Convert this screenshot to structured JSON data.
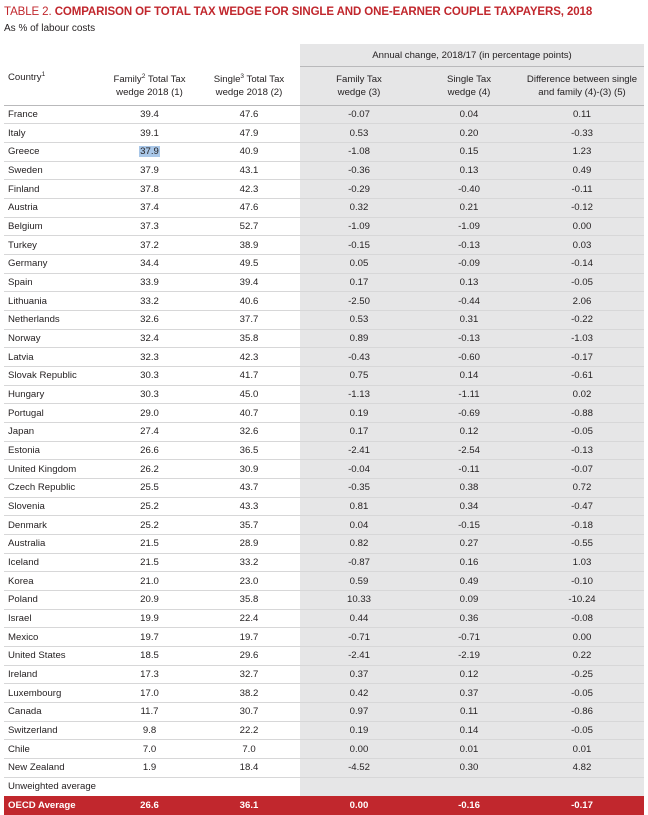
{
  "title": {
    "prefix": "TABLE 2.",
    "text": "COMPARISON OF TOTAL TAX WEDGE FOR SINGLE AND ONE-EARNER COUPLE TAXPAYERS, 2018",
    "subtitle": "As % of labour costs"
  },
  "headers": {
    "annual": "Annual change, 2018/17 (in percentage points)",
    "country": "Country",
    "country_sup": "1",
    "family_a": "Family",
    "family_sup": "2",
    "family_b": " Total Tax",
    "family_c": "wedge 2018 (1)",
    "single_a": "Single",
    "single_sup": "3",
    "single_b": " Total Tax",
    "single_c": "wedge 2018 (2)",
    "family_change_a": "Family Tax",
    "family_change_b": "wedge (3)",
    "single_change_a": "Single Tax",
    "single_change_b": "wedge (4)",
    "diff_a": "Difference between single",
    "diff_b": "and family (4)-(3) (5)"
  },
  "rows": [
    {
      "country": "France",
      "family": "39.4",
      "single": "47.6",
      "d_family": "-0.07",
      "d_single": "0.04",
      "diff": "0.11"
    },
    {
      "country": "Italy",
      "family": "39.1",
      "single": "47.9",
      "d_family": "0.53",
      "d_single": "0.20",
      "diff": "-0.33"
    },
    {
      "country": "Greece",
      "family": "37.9",
      "single": "40.9",
      "d_family": "-1.08",
      "d_single": "0.15",
      "diff": "1.23"
    },
    {
      "country": "Sweden",
      "family": "37.9",
      "single": "43.1",
      "d_family": "-0.36",
      "d_single": "0.13",
      "diff": "0.49"
    },
    {
      "country": "Finland",
      "family": "37.8",
      "single": "42.3",
      "d_family": "-0.29",
      "d_single": "-0.40",
      "diff": "-0.11"
    },
    {
      "country": "Austria",
      "family": "37.4",
      "single": "47.6",
      "d_family": "0.32",
      "d_single": "0.21",
      "diff": "-0.12"
    },
    {
      "country": "Belgium",
      "family": "37.3",
      "single": "52.7",
      "d_family": "-1.09",
      "d_single": "-1.09",
      "diff": "0.00"
    },
    {
      "country": "Turkey",
      "family": "37.2",
      "single": "38.9",
      "d_family": "-0.15",
      "d_single": "-0.13",
      "diff": "0.03"
    },
    {
      "country": "Germany",
      "family": "34.4",
      "single": "49.5",
      "d_family": "0.05",
      "d_single": "-0.09",
      "diff": "-0.14"
    },
    {
      "country": "Spain",
      "family": "33.9",
      "single": "39.4",
      "d_family": "0.17",
      "d_single": "0.13",
      "diff": "-0.05"
    },
    {
      "country": "Lithuania",
      "family": "33.2",
      "single": "40.6",
      "d_family": "-2.50",
      "d_single": "-0.44",
      "diff": "2.06"
    },
    {
      "country": "Netherlands",
      "family": "32.6",
      "single": "37.7",
      "d_family": "0.53",
      "d_single": "0.31",
      "diff": "-0.22"
    },
    {
      "country": "Norway",
      "family": "32.4",
      "single": "35.8",
      "d_family": "0.89",
      "d_single": "-0.13",
      "diff": "-1.03"
    },
    {
      "country": "Latvia",
      "family": "32.3",
      "single": "42.3",
      "d_family": "-0.43",
      "d_single": "-0.60",
      "diff": "-0.17"
    },
    {
      "country": "Slovak Republic",
      "family": "30.3",
      "single": "41.7",
      "d_family": "0.75",
      "d_single": "0.14",
      "diff": "-0.61"
    },
    {
      "country": "Hungary",
      "family": "30.3",
      "single": "45.0",
      "d_family": "-1.13",
      "d_single": "-1.11",
      "diff": "0.02"
    },
    {
      "country": "Portugal",
      "family": "29.0",
      "single": "40.7",
      "d_family": "0.19",
      "d_single": "-0.69",
      "diff": "-0.88"
    },
    {
      "country": "Japan",
      "family": "27.4",
      "single": "32.6",
      "d_family": "0.17",
      "d_single": "0.12",
      "diff": "-0.05"
    },
    {
      "country": "Estonia",
      "family": "26.6",
      "single": "36.5",
      "d_family": "-2.41",
      "d_single": "-2.54",
      "diff": "-0.13"
    },
    {
      "country": "United Kingdom",
      "family": "26.2",
      "single": "30.9",
      "d_family": "-0.04",
      "d_single": "-0.11",
      "diff": "-0.07"
    },
    {
      "country": "Czech Republic",
      "family": "25.5",
      "single": "43.7",
      "d_family": "-0.35",
      "d_single": "0.38",
      "diff": "0.72"
    },
    {
      "country": "Slovenia",
      "family": "25.2",
      "single": "43.3",
      "d_family": "0.81",
      "d_single": "0.34",
      "diff": "-0.47"
    },
    {
      "country": "Denmark",
      "family": "25.2",
      "single": "35.7",
      "d_family": "0.04",
      "d_single": "-0.15",
      "diff": "-0.18"
    },
    {
      "country": "Australia",
      "family": "21.5",
      "single": "28.9",
      "d_family": "0.82",
      "d_single": "0.27",
      "diff": "-0.55"
    },
    {
      "country": "Iceland",
      "family": "21.5",
      "single": "33.2",
      "d_family": "-0.87",
      "d_single": "0.16",
      "diff": "1.03"
    },
    {
      "country": "Korea",
      "family": "21.0",
      "single": "23.0",
      "d_family": "0.59",
      "d_single": "0.49",
      "diff": "-0.10"
    },
    {
      "country": "Poland",
      "family": "20.9",
      "single": "35.8",
      "d_family": "10.33",
      "d_single": "0.09",
      "diff": "-10.24"
    },
    {
      "country": "Israel",
      "family": "19.9",
      "single": "22.4",
      "d_family": "0.44",
      "d_single": "0.36",
      "diff": "-0.08"
    },
    {
      "country": "Mexico",
      "family": "19.7",
      "single": "19.7",
      "d_family": "-0.71",
      "d_single": "-0.71",
      "diff": "0.00"
    },
    {
      "country": "United States",
      "family": "18.5",
      "single": "29.6",
      "d_family": "-2.41",
      "d_single": "-2.19",
      "diff": "0.22"
    },
    {
      "country": "Ireland",
      "family": "17.3",
      "single": "32.7",
      "d_family": "0.37",
      "d_single": "0.12",
      "diff": "-0.25"
    },
    {
      "country": "Luxembourg",
      "family": "17.0",
      "single": "38.2",
      "d_family": "0.42",
      "d_single": "0.37",
      "diff": "-0.05"
    },
    {
      "country": "Canada",
      "family": "11.7",
      "single": "30.7",
      "d_family": "0.97",
      "d_single": "0.11",
      "diff": "-0.86"
    },
    {
      "country": "Switzerland",
      "family": "9.8",
      "single": "22.2",
      "d_family": "0.19",
      "d_single": "0.14",
      "diff": "-0.05"
    },
    {
      "country": "Chile",
      "family": "7.0",
      "single": "7.0",
      "d_family": "0.00",
      "d_single": "0.01",
      "diff": "0.01"
    },
    {
      "country": "New Zealand",
      "family": "1.9",
      "single": "18.4",
      "d_family": "-4.52",
      "d_single": "0.30",
      "diff": "4.82"
    }
  ],
  "unweighted_label": "Unweighted average",
  "oecd": {
    "country": "OECD Average",
    "family": "26.6",
    "single": "36.1",
    "d_family": "0.00",
    "d_single": "-0.16",
    "diff": "-0.17"
  },
  "colors": {
    "accent": "#c1272d",
    "shade": "#e6e6e7",
    "highlight": "#a9c7e8"
  }
}
